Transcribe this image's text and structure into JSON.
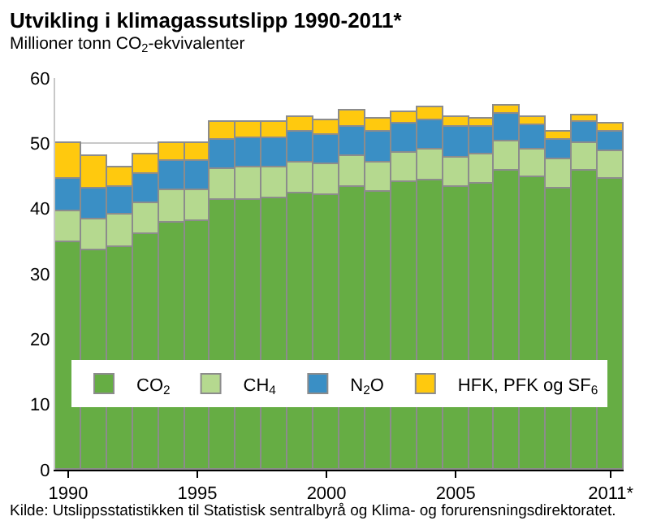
{
  "chart_data": {
    "type": "bar",
    "stacked": true,
    "title": "Utvikling i klimagassutslipp 1990-2011*",
    "subtitle": "Millioner tonn CO$_{2}$-ekvivalenter",
    "annotations": [
      "Kilde: Utslippsstatistikken til Statistisk sentralbyrå og Klima- og forurensningsdirektoratet."
    ],
    "categories": [
      "1990",
      null,
      null,
      null,
      null,
      "1995",
      null,
      null,
      null,
      null,
      "2000",
      null,
      null,
      null,
      null,
      "2005",
      null,
      null,
      null,
      null,
      null,
      "2011*"
    ],
    "series": [
      {
        "name": "CO$_{2}$",
        "color": "#66ad44",
        "values": [
          34.9,
          33.6,
          34.2,
          36.0,
          37.9,
          38.1,
          41.3,
          41.4,
          41.6,
          42.4,
          42.1,
          43.2,
          42.5,
          44.0,
          44.3,
          43.3,
          43.8,
          45.7,
          44.7,
          43.1,
          45.7,
          44.5
        ]
      },
      {
        "name": "CH$_{4}$",
        "color": "#b5d98f",
        "values": [
          4.8,
          4.7,
          4.9,
          4.9,
          4.9,
          4.7,
          4.8,
          4.8,
          4.8,
          4.6,
          4.7,
          4.9,
          4.6,
          4.5,
          4.7,
          4.5,
          4.4,
          4.6,
          4.4,
          4.4,
          4.4,
          4.4
        ]
      },
      {
        "name": "N$_{2}$O",
        "color": "#3a8fc5",
        "values": [
          4.8,
          4.7,
          4.1,
          4.3,
          4.5,
          4.5,
          4.5,
          4.5,
          4.3,
          4.7,
          4.5,
          4.4,
          4.6,
          4.5,
          4.6,
          4.7,
          4.3,
          4.1,
          3.6,
          3.1,
          3.1,
          2.9
        ]
      },
      {
        "name": "HFK, PFK og SF$_{6}$",
        "color": "#ffc90e",
        "values": [
          5.6,
          5.0,
          3.1,
          3.0,
          2.8,
          2.8,
          2.6,
          2.5,
          2.6,
          2.4,
          2.3,
          2.6,
          2.0,
          1.7,
          1.8,
          1.6,
          1.4,
          1.4,
          1.4,
          1.2,
          1.0,
          1.2
        ]
      }
    ],
    "ylim": [
      0,
      60
    ],
    "yticks": [
      0,
      10,
      20,
      30,
      40,
      50,
      60
    ],
    "grid": "y",
    "legend": "bottom"
  }
}
